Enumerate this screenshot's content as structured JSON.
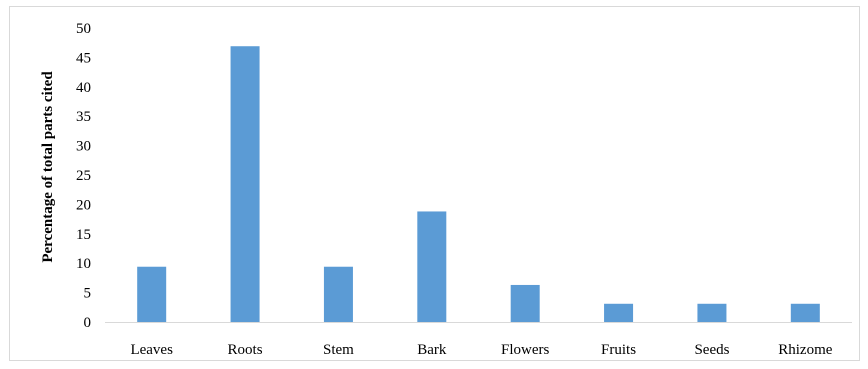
{
  "chart_data": {
    "type": "bar",
    "title": "",
    "xlabel": "",
    "ylabel": "Percentage of total parts cited",
    "categories": [
      "Leaves",
      "Roots",
      "Stem",
      "Bark",
      "Flowers",
      "Fruits",
      "Seeds",
      "Rhizome"
    ],
    "values": [
      9.4,
      46.9,
      9.4,
      18.8,
      6.3,
      3.1,
      3.1,
      3.1
    ],
    "ylim": [
      0,
      50
    ],
    "yticks": [
      "0",
      "5",
      "10",
      "15",
      "20",
      "25",
      "30",
      "35",
      "40",
      "45",
      "50"
    ],
    "grid": false,
    "legend": "none",
    "bar_color": "#5b9bd5",
    "axis_color": "#d9d9d9"
  }
}
